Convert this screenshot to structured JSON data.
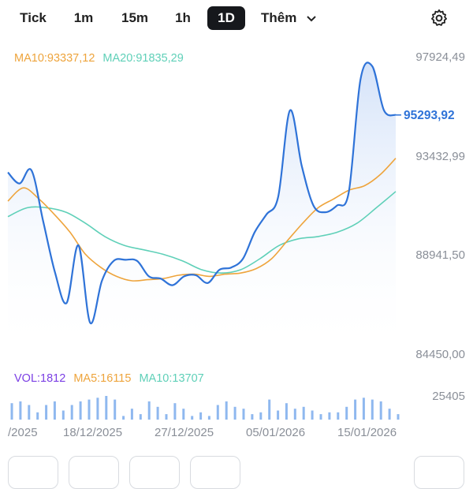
{
  "tabs": [
    {
      "label": "Tick",
      "active": false
    },
    {
      "label": "1m",
      "active": false
    },
    {
      "label": "15m",
      "active": false
    },
    {
      "label": "1h",
      "active": false
    },
    {
      "label": "1D",
      "active": true
    }
  ],
  "more_label": "Thêm",
  "legend": {
    "ma10": "MA10:93337,12",
    "ma20": "MA20:91835,29"
  },
  "price_axis": {
    "top": "97924,49",
    "current": "95293,92",
    "mid_high": "93432,99",
    "mid_low": "88941,50",
    "bottom": "84450,00"
  },
  "volume": {
    "vol": "VOL:1812",
    "ma5": "MA5:16115",
    "ma10": "MA10:13707",
    "max": "25405"
  },
  "dates": [
    "/2025",
    "18/12/2025",
    "27/12/2025",
    "05/01/2026",
    "15/01/2026"
  ],
  "colors": {
    "price_line": "#2f73d8",
    "ma10": "#eea43c",
    "ma20": "#5fd0b8",
    "volume_bar": "#8fb8ef",
    "volume_label": "#7b3fe4"
  },
  "icons": [
    "chevron-down-icon",
    "gear-icon"
  ],
  "chart_data": {
    "type": "line",
    "ylim": [
      84450,
      97924.49
    ],
    "series": [
      {
        "values": [
          92700,
          92200,
          92800,
          90500,
          88200,
          86800,
          89400,
          85900,
          87800,
          88700,
          88750,
          88700,
          88000,
          87900,
          87600,
          88000,
          88050,
          87700,
          88300,
          88400,
          88800,
          90000,
          90800,
          91600,
          95500,
          93000,
          91200,
          90900,
          91200,
          91800,
          96900,
          97500,
          95500,
          95293.92
        ]
      },
      {
        "name": "MA10",
        "values": [
          91400,
          92000,
          91500,
          90800,
          90000,
          89000,
          88400,
          88000,
          87800,
          87850,
          87900,
          88050,
          88100,
          88000,
          88100,
          88150,
          88350,
          88800,
          89600,
          90400,
          91100,
          91500,
          91900,
          92100,
          92600,
          93337.12
        ]
      },
      {
        "name": "MA20",
        "values": [
          90700,
          91100,
          91100,
          90900,
          90400,
          89800,
          89400,
          89200,
          89000,
          88700,
          88300,
          88150,
          88300,
          88800,
          89400,
          89700,
          89800,
          90000,
          90400,
          91100,
          91835.29
        ]
      }
    ],
    "volume_values": [
      9,
      10,
      8,
      4,
      8,
      10,
      5,
      8,
      10,
      11,
      12,
      13,
      11,
      2,
      6,
      3,
      10,
      7,
      3,
      9,
      6,
      2,
      4,
      2,
      8,
      10,
      7,
      6,
      3,
      4,
      11,
      5,
      9,
      6,
      7,
      5,
      3,
      4,
      4,
      7,
      11,
      12,
      11,
      10,
      6,
      3
    ],
    "ylabel": "",
    "xlabel": ""
  }
}
